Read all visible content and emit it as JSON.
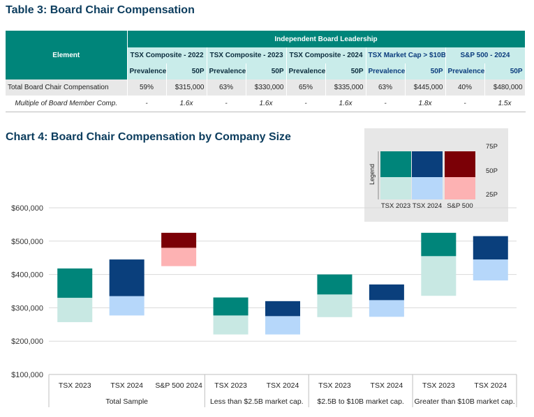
{
  "table": {
    "title": "Table 3: Board Chair Compensation",
    "element_header": "Element",
    "group_header": "Independent Board Leadership",
    "columns": [
      {
        "label": "TSX Composite - 2022",
        "sub": [
          "Prevalence",
          "50P"
        ]
      },
      {
        "label": "TSX Composite - 2023",
        "sub": [
          "Prevalence",
          "50P"
        ]
      },
      {
        "label": "TSX Composite - 2024",
        "sub": [
          "Prevalence",
          "50P"
        ]
      },
      {
        "label": "TSX Market Cap > $10B",
        "sub": [
          "Prevalence",
          "50P"
        ]
      },
      {
        "label": "S&P 500 - 2024",
        "sub": [
          "Prevalence",
          "50P"
        ]
      }
    ],
    "rows": [
      {
        "label": "Total Board Chair Compensation",
        "values": [
          "59%",
          "$315,000",
          "63%",
          "$330,000",
          "65%",
          "$335,000",
          "63%",
          "$445,000",
          "40%",
          "$480,000"
        ]
      },
      {
        "label": "Multiple of Board Member Comp.",
        "values": [
          "-",
          "1.6x",
          "-",
          "1.6x",
          "-",
          "1.6x",
          "-",
          "1.8x",
          "-",
          "1.5x"
        ]
      }
    ]
  },
  "colors": {
    "tsx2023_dark": "#00857a",
    "tsx2023_light": "#c8e8e3",
    "tsx2024_dark": "#0a3f7c",
    "tsx2024_light": "#b6d7fa",
    "sp500_dark": "#7b0006",
    "sp500_light": "#fdb2b3"
  },
  "chart_data": {
    "type": "bar",
    "title": "Chart 4: Board Chair Compensation by Company Size",
    "ylim": [
      100000,
      600000
    ],
    "y_ticks": [
      100000,
      200000,
      300000,
      400000,
      500000,
      600000
    ],
    "y_tick_labels": [
      "$100,000",
      "$200,000",
      "$300,000",
      "$400,000",
      "$500,000",
      "$600,000"
    ],
    "groups": [
      {
        "label": "Total Sample",
        "bars": [
          {
            "label": "TSX 2023",
            "series": "TSX 2023",
            "p25": 257000,
            "p50": 330000,
            "p75": 418000
          },
          {
            "label": "TSX 2024",
            "series": "TSX 2024",
            "p25": 277000,
            "p50": 335000,
            "p75": 445000
          },
          {
            "label": "S&P 500 2024",
            "series": "S&P 500",
            "p25": 425000,
            "p50": 480000,
            "p75": 525000
          }
        ]
      },
      {
        "label": "Less than $2.5B market cap.",
        "bars": [
          {
            "label": "TSX 2023",
            "series": "TSX 2023",
            "p25": 220000,
            "p50": 277000,
            "p75": 331000
          },
          {
            "label": "TSX 2024",
            "series": "TSX 2024",
            "p25": 220000,
            "p50": 275000,
            "p75": 320000
          }
        ]
      },
      {
        "label": "$2.5B to $10B market cap.",
        "bars": [
          {
            "label": "TSX 2023",
            "series": "TSX 2023",
            "p25": 272000,
            "p50": 340000,
            "p75": 400000
          },
          {
            "label": "TSX 2024",
            "series": "TSX 2024",
            "p25": 273000,
            "p50": 323000,
            "p75": 370000
          }
        ]
      },
      {
        "label": "Greater than $10B market cap.",
        "bars": [
          {
            "label": "TSX 2023",
            "series": "TSX 2023",
            "p25": 336000,
            "p50": 455000,
            "p75": 525000
          },
          {
            "label": "TSX 2024",
            "series": "TSX 2024",
            "p25": 382000,
            "p50": 445000,
            "p75": 515000
          }
        ]
      }
    ],
    "legend": {
      "title": "Legend",
      "placement": "top-right",
      "series": [
        "TSX 2023",
        "TSX 2024",
        "S&P 500"
      ],
      "levels": [
        "75P",
        "50P",
        "25P"
      ]
    },
    "grid": true
  }
}
